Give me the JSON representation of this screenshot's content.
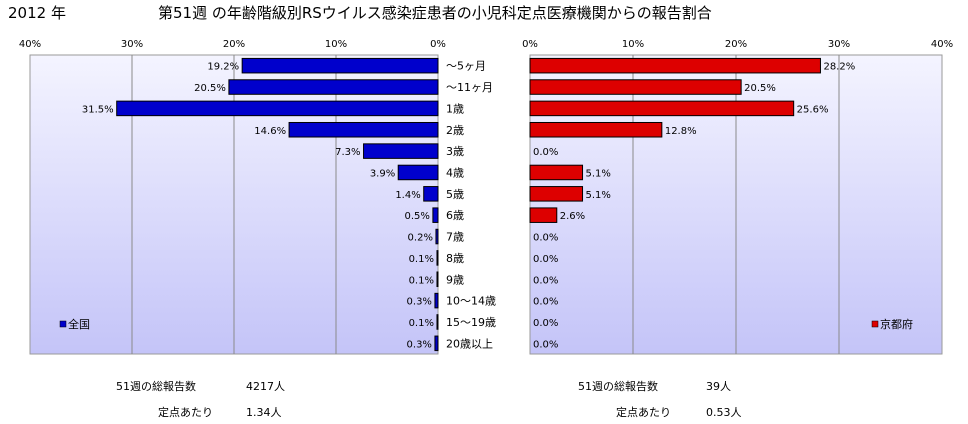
{
  "header": {
    "year": "2012 年",
    "title": "第51週 の年齢階級別RSウイルス感染症患者の小児科定点医療機関からの報告割合"
  },
  "chart_data": [
    {
      "type": "bar",
      "orientation": "horizontal",
      "direction": "right-to-left",
      "xlim": [
        0,
        40
      ],
      "tick_labels": [
        "40%",
        "30%",
        "20%",
        "10%",
        "0%"
      ],
      "categories": [
        "～5ヶ月",
        "～11ヶ月",
        "1歳",
        "2歳",
        "3歳",
        "4歳",
        "5歳",
        "6歳",
        "7歳",
        "8歳",
        "9歳",
        "10～14歳",
        "15～19歳",
        "20歳以上"
      ],
      "series": [
        {
          "name": "全国",
          "color": "#0000cc",
          "values": [
            19.2,
            20.5,
            31.5,
            14.6,
            7.3,
            3.9,
            1.4,
            0.5,
            0.2,
            0.1,
            0.1,
            0.3,
            0.1,
            0.3
          ],
          "labels": [
            "19.2%",
            "20.5%",
            "31.5%",
            "14.6%",
            "7.3%",
            "3.9%",
            "1.4%",
            "0.5%",
            "0.2%",
            "0.1%",
            "0.1%",
            "0.3%",
            "0.1%",
            "0.3%"
          ]
        }
      ],
      "legend": "bottom-left",
      "grid": true
    },
    {
      "type": "bar",
      "orientation": "horizontal",
      "direction": "left-to-right",
      "xlim": [
        0,
        40
      ],
      "tick_labels": [
        "0%",
        "10%",
        "20%",
        "30%",
        "40%"
      ],
      "categories": [
        "～5ヶ月",
        "～11ヶ月",
        "1歳",
        "2歳",
        "3歳",
        "4歳",
        "5歳",
        "6歳",
        "7歳",
        "8歳",
        "9歳",
        "10～14歳",
        "15～19歳",
        "20歳以上"
      ],
      "series": [
        {
          "name": "京都府",
          "color": "#dd0000",
          "values": [
            28.2,
            20.5,
            25.6,
            12.8,
            0.0,
            5.1,
            5.1,
            2.6,
            0.0,
            0.0,
            0.0,
            0.0,
            0.0,
            0.0
          ],
          "labels": [
            "28.2%",
            "20.5%",
            "25.6%",
            "12.8%",
            "0.0%",
            "5.1%",
            "5.1%",
            "2.6%",
            "0.0%",
            "0.0%",
            "0.0%",
            "0.0%",
            "0.0%",
            "0.0%"
          ]
        }
      ],
      "legend": "bottom-right",
      "grid": true
    }
  ],
  "footer": {
    "left": {
      "total_label": "51週の総報告数",
      "total_value": "4217人",
      "per_label": "定点あたり",
      "per_value": "1.34人"
    },
    "right": {
      "total_label": "51週の総報告数",
      "total_value": "39人",
      "per_label": "定点あたり",
      "per_value": "0.53人"
    }
  },
  "colors": {
    "plot_bg_top": "#f4f4ff",
    "plot_bg_bottom": "#c4c4f8",
    "gridline": "#8a8a8a"
  }
}
